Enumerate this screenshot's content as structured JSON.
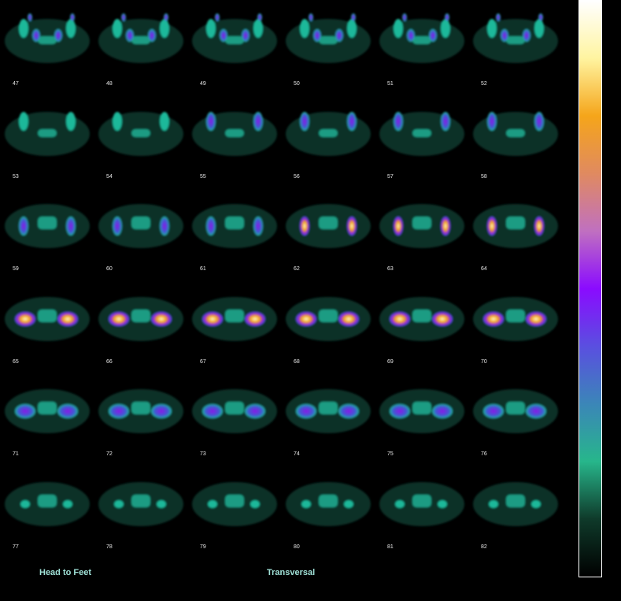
{
  "slices": [
    "47",
    "48",
    "49",
    "50",
    "51",
    "52",
    "53",
    "54",
    "55",
    "56",
    "57",
    "58",
    "59",
    "60",
    "61",
    "62",
    "63",
    "64",
    "65",
    "66",
    "67",
    "68",
    "69",
    "70",
    "71",
    "72",
    "73",
    "74",
    "75",
    "76",
    "77",
    "78",
    "79",
    "80",
    "81",
    "82"
  ],
  "labels": {
    "orientation": "Head to Feet",
    "view": "Transversal"
  },
  "colors": {
    "body": "#0b3a30",
    "tissue": "#1fb89a",
    "mid": "#3a5fd0",
    "purple": "#8a16e8",
    "orange": "#f3a418",
    "white": "#fff7c8"
  },
  "colorbar": {
    "stops": [
      "#000000",
      "#0f3a2a",
      "#27b68b",
      "#3b86b8",
      "#5a4fe0",
      "#8a0bff",
      "#c070c0",
      "#e08a60",
      "#f5a51a",
      "#fff4a0",
      "#ffffff"
    ]
  }
}
